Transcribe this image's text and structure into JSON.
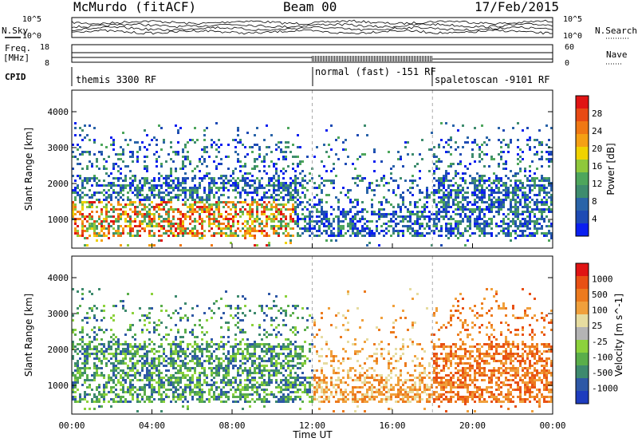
{
  "header": {
    "station": "McMurdo (fitACF)",
    "beam": "Beam 00",
    "date": "17/Feb/2015"
  },
  "top_panels": {
    "nsky_label": "N.Sky",
    "nsearch_label": "N.Search",
    "freq_label_line1": "Freq.",
    "freq_label_line2": "[MHz]",
    "nave_label": "Nave",
    "cpid_label": "CPID",
    "noise_ticks_left": [
      "10^5",
      "10^0"
    ],
    "noise_ticks_right": [
      "10^5",
      "10^0"
    ],
    "freq_ticks": [
      "18",
      "8"
    ],
    "nave_ticks": [
      "60",
      "0"
    ]
  },
  "cpid_segments": [
    {
      "label": "themis 3300 RF",
      "start_hour": 0,
      "end_hour": 12
    },
    {
      "label": "normal (fast) -151 RF",
      "start_hour": 12,
      "end_hour": 18
    },
    {
      "label": "spaletoscan -9101 RF",
      "start_hour": 18,
      "end_hour": 24
    }
  ],
  "colors": {
    "power_scale": [
      "#0a1ff0",
      "#1e4bb4",
      "#2a64a8",
      "#3e8c6e",
      "#4ea65c",
      "#8fc83c",
      "#f0d200",
      "#f5a014",
      "#f07814",
      "#e84a14",
      "#e01414"
    ],
    "velocity_scale": [
      "#1e3cbe",
      "#2e58a6",
      "#3e8a6e",
      "#5aae4a",
      "#8cd23c",
      "#b4b4b4",
      "#e6dca0",
      "#f0a03c",
      "#ec7a1e",
      "#e85014",
      "#e01414"
    ]
  },
  "chart_data": [
    {
      "type": "heatmap",
      "name": "power",
      "ylabel": "Slant Range [km]",
      "xlabel": "",
      "colorbar_label": "Power [dB]",
      "colorbar_ticks": [
        "28",
        "24",
        "20",
        "16",
        "12",
        "8",
        "4"
      ],
      "y_ticks": [
        "4000",
        "3000",
        "2000",
        "1000"
      ],
      "ylim": [
        200,
        4600
      ],
      "xlim_hours": [
        0,
        24
      ],
      "clim": [
        0,
        30
      ]
    },
    {
      "type": "heatmap",
      "name": "velocity",
      "ylabel": "Slant Range [km]",
      "xlabel": "Time UT",
      "colorbar_label": "Velocity [m s^-1]",
      "colorbar_ticks": [
        "1000",
        "500",
        "100",
        "25",
        "-25",
        "-100",
        "-500",
        "-1000"
      ],
      "y_ticks": [
        "4000",
        "3000",
        "2000",
        "1000"
      ],
      "x_ticks": [
        "00:00",
        "04:00",
        "08:00",
        "12:00",
        "16:00",
        "20:00",
        "00:00"
      ],
      "ylim": [
        200,
        4600
      ],
      "xlim_hours": [
        0,
        24
      ]
    }
  ]
}
